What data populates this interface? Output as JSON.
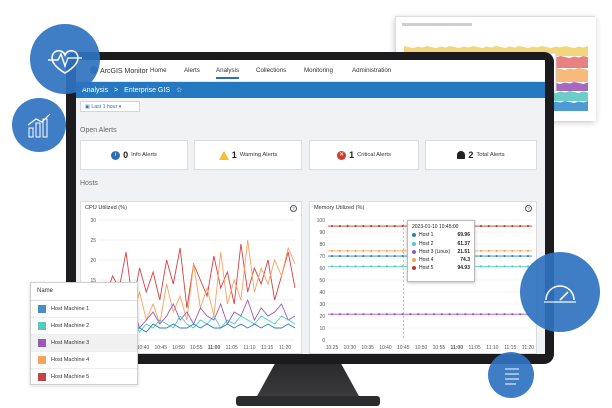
{
  "app": {
    "name": "ArcGIS Monitor",
    "nav": [
      "Home",
      "Alerts",
      "Analysis",
      "Collections",
      "Monitoring",
      "Administration"
    ],
    "active_nav": "Analysis"
  },
  "breadcrumb": {
    "section": "Analysis",
    "separator": ">",
    "page": "Enterprise GIS",
    "star": "☆"
  },
  "filter": {
    "label": "Last 1 hour"
  },
  "open_alerts": {
    "title": "Open Alerts",
    "cards": [
      {
        "count": "0",
        "label": "Info Alerts",
        "color": "#2c6fb7"
      },
      {
        "count": "1",
        "label": "Warning Alerts",
        "color": "#f2c12e"
      },
      {
        "count": "1",
        "label": "Critical Alerts",
        "color": "#d43b2a"
      },
      {
        "count": "2",
        "label": "Total Alerts",
        "color": "#222222"
      }
    ]
  },
  "hosts": {
    "title": "Hosts"
  },
  "chart_data": [
    {
      "type": "line",
      "title": "CPU Utilized (%)",
      "xlabel": "",
      "ylabel": "",
      "ylim": [
        0,
        30
      ],
      "yticks": [
        "30",
        "25",
        "20",
        "15",
        "10",
        "5",
        "0"
      ],
      "xticks": [
        "10:40",
        "10:45",
        "10:50",
        "10:55",
        "11:00",
        "11:05",
        "11:10",
        "11:15",
        "11:20"
      ],
      "series": [
        {
          "color": "#d64045",
          "values": [
            7,
            11,
            16,
            13,
            22,
            9,
            18,
            12,
            17,
            10,
            20,
            14,
            23,
            8,
            19,
            15,
            11,
            21,
            13,
            17,
            9,
            24,
            12,
            18,
            14,
            20,
            10,
            16,
            22,
            13
          ]
        },
        {
          "color": "#f7a35c",
          "values": [
            3,
            5,
            7,
            4,
            10,
            6,
            12,
            5,
            9,
            4,
            14,
            7,
            11,
            5,
            19,
            8,
            13,
            6,
            22,
            9,
            15,
            10,
            25,
            12,
            18,
            14,
            20,
            16,
            23,
            19
          ]
        },
        {
          "color": "#9b59b6",
          "values": [
            2,
            4,
            3,
            6,
            4,
            8,
            3,
            5,
            7,
            4,
            6,
            9,
            5,
            7,
            4,
            8,
            6,
            5,
            9,
            4,
            7,
            6,
            10,
            5,
            8,
            6,
            7,
            9,
            5,
            6
          ]
        },
        {
          "color": "#4ecdc4",
          "values": [
            1,
            3,
            2,
            4,
            3,
            5,
            2,
            4,
            3,
            5,
            4,
            3,
            6,
            4,
            3,
            5,
            4,
            6,
            3,
            5,
            4,
            6,
            5,
            4,
            6,
            5,
            4,
            6,
            5,
            4
          ]
        },
        {
          "color": "#2c7fb8",
          "values": [
            2,
            2,
            3,
            2,
            4,
            3,
            3,
            2,
            4,
            3,
            3,
            4,
            3,
            3,
            4,
            3,
            4,
            3,
            3,
            4,
            3,
            4,
            3,
            4,
            3,
            4,
            3,
            3,
            4,
            3
          ]
        }
      ]
    },
    {
      "type": "line",
      "title": "Memory Utilized (%)",
      "xlabel": "",
      "ylabel": "",
      "ylim": [
        0,
        100
      ],
      "yticks": [
        "100",
        "90",
        "80",
        "70",
        "60",
        "50",
        "40",
        "30",
        "20",
        "10",
        "0"
      ],
      "xticks": [
        "10:25",
        "10:30",
        "10:35",
        "10:40",
        "10:45",
        "10:50",
        "10:55",
        "11:00",
        "11:05",
        "11:10",
        "11:15",
        "11:20"
      ],
      "series": [
        {
          "name": "Host 1",
          "color": "#2c7fb8",
          "value": 69.96
        },
        {
          "name": "Host 2",
          "color": "#4ecdc4",
          "value": 61.37
        },
        {
          "name": "Host 3 (Linux)",
          "color": "#9b59b6",
          "value": 21.51
        },
        {
          "name": "Host 4",
          "color": "#f7a35c",
          "value": 74.3
        },
        {
          "name": "Host 5",
          "color": "#c0392b",
          "value": 94.93
        }
      ],
      "tooltip": {
        "timestamp": "2023-01-10 10:45:00"
      }
    }
  ],
  "legend": {
    "header": "Name",
    "items": [
      {
        "name": "Host Machine 1",
        "color": "#4a8fc4"
      },
      {
        "name": "Host Machine 2",
        "color": "#5cc7c0"
      },
      {
        "name": "Host Machine 3",
        "color": "#9b59b6"
      },
      {
        "name": "Host Machine 4",
        "color": "#f7a35c"
      },
      {
        "name": "Host Machine 5",
        "color": "#c44545"
      }
    ]
  }
}
